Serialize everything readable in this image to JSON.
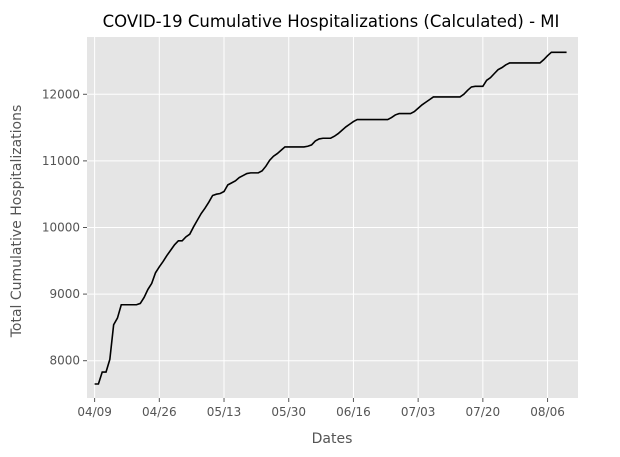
{
  "chart_data": {
    "type": "line",
    "title": "COVID-19 Cumulative Hospitalizations (Calculated) - MI",
    "xlabel": "Dates",
    "ylabel": "Total Cumulative Hospitalizations",
    "x_tick_labels": [
      "04/09",
      "04/26",
      "05/13",
      "05/30",
      "06/16",
      "07/03",
      "07/20",
      "08/06"
    ],
    "x_tick_values": [
      0,
      17,
      34,
      51,
      68,
      85,
      102,
      119
    ],
    "y_ticks": [
      8000,
      9000,
      10000,
      11000,
      12000
    ],
    "xlim": [
      -2,
      127
    ],
    "ylim": [
      7440,
      12860
    ],
    "grid": true,
    "background_color": "#e5e5e5",
    "grid_color": "#ffffff",
    "line_color": "#000000",
    "series": [
      {
        "x": [
          0,
          1,
          2,
          3,
          4,
          5,
          6,
          7,
          8,
          9,
          10,
          11,
          12,
          13,
          14,
          15,
          16,
          17,
          18,
          19,
          20,
          21,
          22,
          23,
          24,
          25,
          26,
          27,
          28,
          29,
          30,
          31,
          32,
          33,
          34,
          35,
          36,
          37,
          38,
          39,
          40,
          41,
          42,
          43,
          44,
          45,
          46,
          47,
          48,
          49,
          50,
          51,
          52,
          53,
          54,
          55,
          56,
          57,
          58,
          59,
          60,
          61,
          62,
          63,
          64,
          65,
          66,
          67,
          68,
          69,
          70,
          71,
          72,
          73,
          74,
          75,
          76,
          77,
          78,
          79,
          80,
          81,
          82,
          83,
          84,
          85,
          86,
          87,
          88,
          89,
          90,
          91,
          92,
          93,
          94,
          95,
          96,
          97,
          98,
          99,
          100,
          101,
          102,
          103,
          104,
          105,
          106,
          107,
          108,
          109,
          110,
          111,
          112,
          113,
          114,
          115,
          116,
          117,
          118,
          119,
          120,
          121,
          122,
          123,
          124
        ],
        "values": [
          7650,
          7650,
          7830,
          7830,
          8020,
          8540,
          8640,
          8840,
          8840,
          8840,
          8840,
          8840,
          8860,
          8950,
          9070,
          9160,
          9320,
          9410,
          9490,
          9580,
          9660,
          9740,
          9800,
          9800,
          9860,
          9900,
          10010,
          10110,
          10210,
          10290,
          10380,
          10480,
          10500,
          10510,
          10540,
          10640,
          10670,
          10700,
          10750,
          10780,
          10810,
          10820,
          10820,
          10820,
          10850,
          10920,
          11010,
          11070,
          11110,
          11160,
          11210,
          11210,
          11210,
          11210,
          11210,
          11210,
          11220,
          11240,
          11300,
          11330,
          11340,
          11340,
          11340,
          11370,
          11410,
          11460,
          11510,
          11550,
          11590,
          11620,
          11620,
          11620,
          11620,
          11620,
          11620,
          11620,
          11620,
          11620,
          11650,
          11690,
          11710,
          11710,
          11710,
          11710,
          11740,
          11790,
          11840,
          11880,
          11920,
          11960,
          11960,
          11960,
          11960,
          11960,
          11960,
          11960,
          11960,
          12000,
          12060,
          12110,
          12120,
          12120,
          12120,
          12210,
          12250,
          12310,
          12370,
          12400,
          12440,
          12470,
          12470,
          12470,
          12470,
          12470,
          12470,
          12470,
          12470,
          12470,
          12520,
          12580,
          12630,
          12630,
          12630,
          12630,
          12630
        ]
      }
    ]
  }
}
